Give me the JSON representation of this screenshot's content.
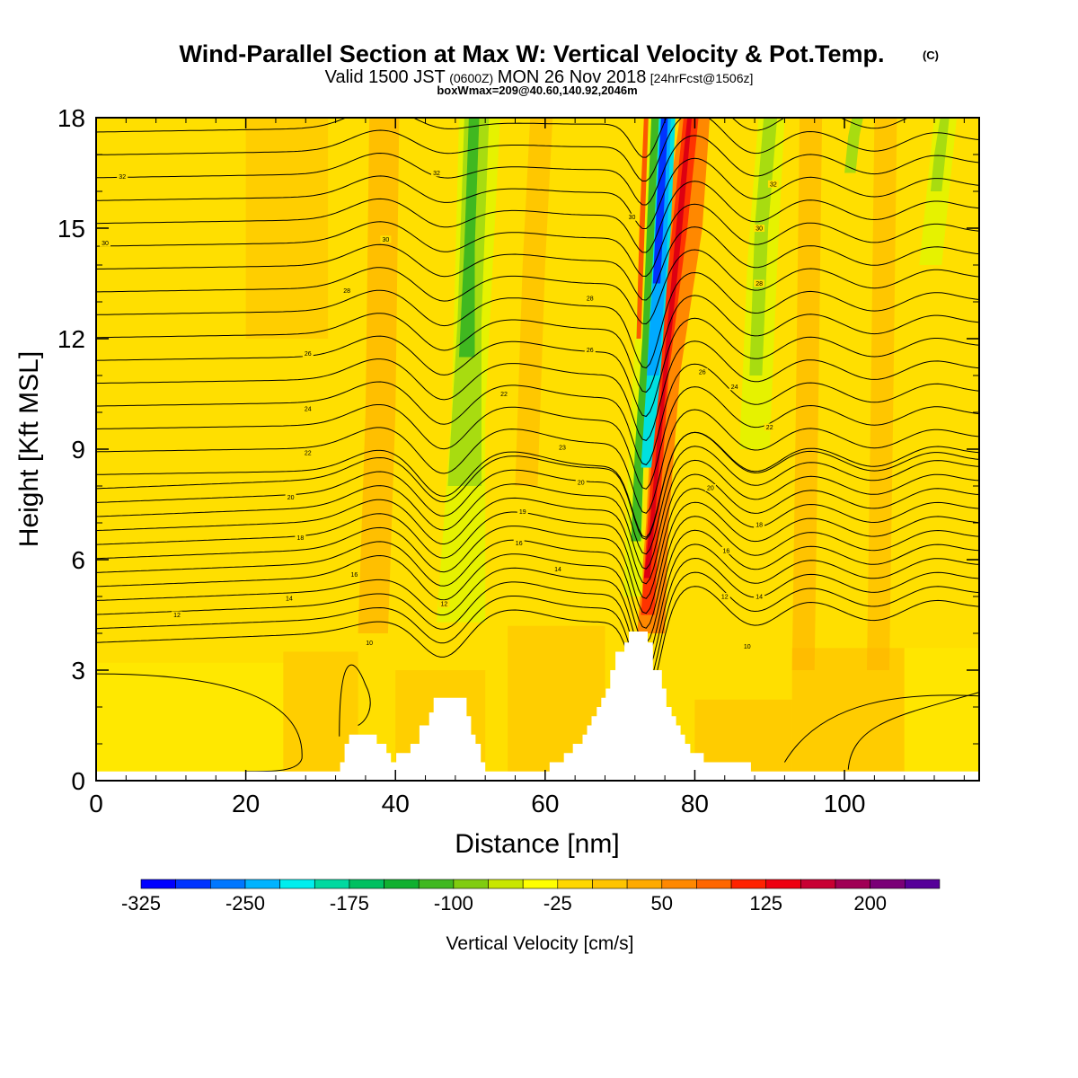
{
  "chart_data": {
    "type": "heatmap",
    "title": "Wind-Parallel Section at Max W: Vertical Velocity & Pot.Temp.",
    "title_mark": "(C)",
    "subtitle_valid": "Valid 1500 JST",
    "subtitle_utc": "(0600Z)",
    "subtitle_date": "MON 26 Nov 2018",
    "subtitle_fcst": "[24hrFcst@1506z]",
    "subtitle2": "boxWmax=209@40.60,140.92,2046m",
    "xlabel": "Distance [nm]",
    "ylabel": "Height [Kft MSL]",
    "xlim": [
      0,
      118
    ],
    "ylim": [
      0,
      18
    ],
    "xticks": [
      0,
      20,
      40,
      60,
      80,
      100
    ],
    "yticks": [
      0,
      3,
      6,
      9,
      12,
      15,
      18
    ],
    "colorbar": {
      "label": "Vertical Velocity [cm/s]",
      "ticks": [
        "-325",
        "-250",
        "-175",
        "-100",
        "-25",
        "50",
        "125",
        "200"
      ],
      "tick_values": [
        -325,
        -250,
        -175,
        -100,
        -25,
        50,
        125,
        200
      ],
      "min": -325,
      "step": 25,
      "colors": [
        "#0000ff",
        "#0033ff",
        "#0077ff",
        "#00b3ff",
        "#00eeee",
        "#00d9a0",
        "#00c060",
        "#10b030",
        "#40b820",
        "#80cc10",
        "#c8e600",
        "#ffff00",
        "#ffd700",
        "#ffc400",
        "#ffaa00",
        "#ff8800",
        "#ff6600",
        "#ff2200",
        "#ee0011",
        "#c80033",
        "#a00055",
        "#7a0077",
        "#560099"
      ]
    },
    "terrain_profile_kft": [
      [
        0,
        0.25
      ],
      [
        32.6,
        0.25
      ],
      [
        32.6,
        0.5
      ],
      [
        33.2,
        0.5
      ],
      [
        33.2,
        1.0
      ],
      [
        33.8,
        1.0
      ],
      [
        33.8,
        1.25
      ],
      [
        37.5,
        1.25
      ],
      [
        37.5,
        1.0
      ],
      [
        38.8,
        1.0
      ],
      [
        38.8,
        0.75
      ],
      [
        39.4,
        0.75
      ],
      [
        39.4,
        0.5
      ],
      [
        40.1,
        0.5
      ],
      [
        40.1,
        0.75
      ],
      [
        42.0,
        0.75
      ],
      [
        42.0,
        1.0
      ],
      [
        43.2,
        1.0
      ],
      [
        43.2,
        1.5
      ],
      [
        44.5,
        1.5
      ],
      [
        44.5,
        1.85
      ],
      [
        45.1,
        1.85
      ],
      [
        45.1,
        2.25
      ],
      [
        49.5,
        2.25
      ],
      [
        49.5,
        1.75
      ],
      [
        50.1,
        1.75
      ],
      [
        50.1,
        1.25
      ],
      [
        50.7,
        1.25
      ],
      [
        50.7,
        1.0
      ],
      [
        51.4,
        1.0
      ],
      [
        51.4,
        0.5
      ],
      [
        52.0,
        0.5
      ],
      [
        52.0,
        0.25
      ],
      [
        60.6,
        0.25
      ],
      [
        60.6,
        0.5
      ],
      [
        62.5,
        0.5
      ],
      [
        62.5,
        0.75
      ],
      [
        63.7,
        0.75
      ],
      [
        63.7,
        1.0
      ],
      [
        65.0,
        1.0
      ],
      [
        65.0,
        1.25
      ],
      [
        65.6,
        1.25
      ],
      [
        65.6,
        1.5
      ],
      [
        66.2,
        1.5
      ],
      [
        66.2,
        1.75
      ],
      [
        66.9,
        1.75
      ],
      [
        66.9,
        2.0
      ],
      [
        67.5,
        2.0
      ],
      [
        67.5,
        2.25
      ],
      [
        68.1,
        2.25
      ],
      [
        68.1,
        2.5
      ],
      [
        68.7,
        2.5
      ],
      [
        68.7,
        3.0
      ],
      [
        69.4,
        3.0
      ],
      [
        69.4,
        3.5
      ],
      [
        70.6,
        3.5
      ],
      [
        70.6,
        3.75
      ],
      [
        71.2,
        3.75
      ],
      [
        71.2,
        4.05
      ],
      [
        73.7,
        4.05
      ],
      [
        73.7,
        3.75
      ],
      [
        74.4,
        3.75
      ],
      [
        74.4,
        3.0
      ],
      [
        75.6,
        3.0
      ],
      [
        75.6,
        2.5
      ],
      [
        76.2,
        2.5
      ],
      [
        76.2,
        2.0
      ],
      [
        76.9,
        2.0
      ],
      [
        76.9,
        1.75
      ],
      [
        77.5,
        1.75
      ],
      [
        77.5,
        1.5
      ],
      [
        78.1,
        1.5
      ],
      [
        78.1,
        1.25
      ],
      [
        78.7,
        1.25
      ],
      [
        78.7,
        1.0
      ],
      [
        79.4,
        1.0
      ],
      [
        79.4,
        0.75
      ],
      [
        81.2,
        0.75
      ],
      [
        81.2,
        0.5
      ],
      [
        87.5,
        0.5
      ],
      [
        87.5,
        0.25
      ],
      [
        118,
        0.25
      ]
    ],
    "contour_labels": [
      {
        "text": "32",
        "x": 3.5,
        "y": 16.4
      },
      {
        "text": "30",
        "x": 1.2,
        "y": 14.6
      },
      {
        "text": "32",
        "x": 45.5,
        "y": 16.5
      },
      {
        "text": "30",
        "x": 38.7,
        "y": 14.7
      },
      {
        "text": "28",
        "x": 33.5,
        "y": 13.3
      },
      {
        "text": "26",
        "x": 28.3,
        "y": 11.6
      },
      {
        "text": "24",
        "x": 28.3,
        "y": 10.1
      },
      {
        "text": "22",
        "x": 28.3,
        "y": 8.9
      },
      {
        "text": "20",
        "x": 26.0,
        "y": 7.7
      },
      {
        "text": "18",
        "x": 27.3,
        "y": 6.6
      },
      {
        "text": "16",
        "x": 34.5,
        "y": 5.6
      },
      {
        "text": "14",
        "x": 25.8,
        "y": 4.95
      },
      {
        "text": "12",
        "x": 10.8,
        "y": 4.5
      },
      {
        "text": "10",
        "x": 36.5,
        "y": 3.75
      },
      {
        "text": "12",
        "x": 46.5,
        "y": 4.8
      },
      {
        "text": "22",
        "x": 54.5,
        "y": 10.5
      },
      {
        "text": "19",
        "x": 57.0,
        "y": 7.3
      },
      {
        "text": "16",
        "x": 56.5,
        "y": 6.45
      },
      {
        "text": "14",
        "x": 61.7,
        "y": 5.75
      },
      {
        "text": "23",
        "x": 62.3,
        "y": 9.05
      },
      {
        "text": "20",
        "x": 64.8,
        "y": 8.1
      },
      {
        "text": "28",
        "x": 66.0,
        "y": 13.1
      },
      {
        "text": "26",
        "x": 66.0,
        "y": 11.7
      },
      {
        "text": "30",
        "x": 71.6,
        "y": 15.3
      },
      {
        "text": "32",
        "x": 90.5,
        "y": 16.2
      },
      {
        "text": "30",
        "x": 88.6,
        "y": 15.0
      },
      {
        "text": "28",
        "x": 88.6,
        "y": 13.5
      },
      {
        "text": "26",
        "x": 81.0,
        "y": 11.1
      },
      {
        "text": "24",
        "x": 85.3,
        "y": 10.7
      },
      {
        "text": "22",
        "x": 90.0,
        "y": 9.6
      },
      {
        "text": "20",
        "x": 82.1,
        "y": 7.95
      },
      {
        "text": "18",
        "x": 88.6,
        "y": 6.95
      },
      {
        "text": "16",
        "x": 84.2,
        "y": 6.25
      },
      {
        "text": "12",
        "x": 84.0,
        "y": 5.0
      },
      {
        "text": "14",
        "x": 88.6,
        "y": 5.0
      },
      {
        "text": "10",
        "x": 87.0,
        "y": 3.65
      }
    ]
  }
}
